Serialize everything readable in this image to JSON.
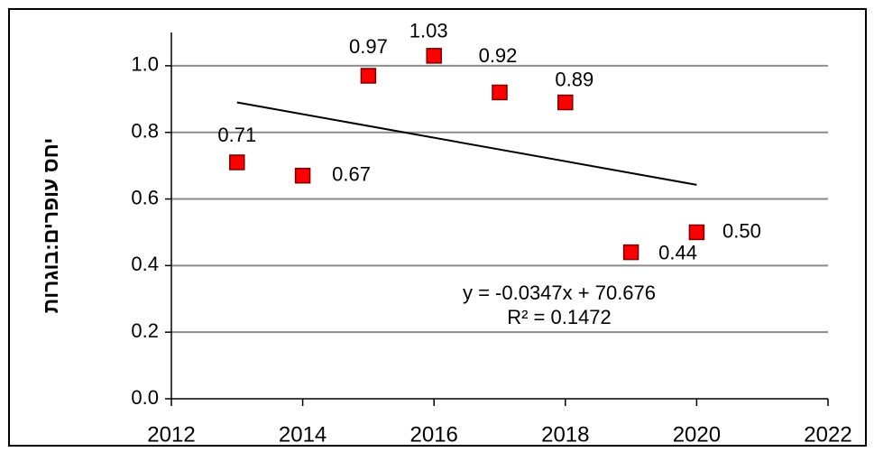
{
  "chart_data": {
    "type": "scatter",
    "y_label": "יחס עופרים:בוגרות",
    "x": [
      2013,
      2014,
      2015,
      2016,
      2017,
      2018,
      2019,
      2020
    ],
    "values": [
      0.71,
      0.67,
      0.97,
      1.03,
      0.92,
      0.89,
      0.44,
      0.5
    ],
    "value_labels": [
      "0.71",
      "0.67",
      "0.97",
      "1.03",
      "0.92",
      "0.89",
      "0.44",
      "0.50"
    ],
    "color": "#ff0000",
    "trendline": true,
    "trendline_label": [
      "y = -0.0347x + 70.676",
      "R² = 0.1472"
    ],
    "xlim": [
      2012,
      2022
    ],
    "xticks": [
      2012,
      2014,
      2016,
      2018,
      2020,
      2022
    ],
    "ylim": [
      0,
      1.1
    ],
    "yticks": [
      {
        "value": 0,
        "label": "0.0"
      },
      0.2,
      0.4,
      0.6,
      0.8,
      {
        "value": 1,
        "label": "1.0"
      }
    ],
    "grid": true
  }
}
